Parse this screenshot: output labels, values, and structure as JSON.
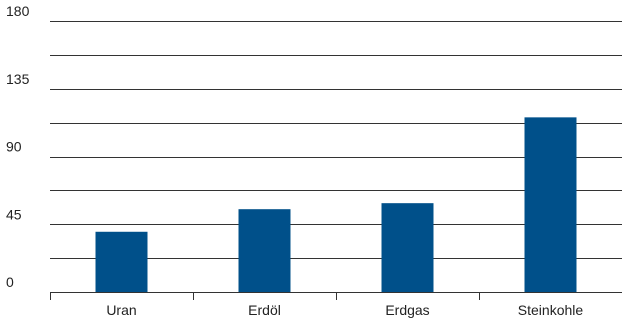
{
  "chart_data": {
    "type": "bar",
    "categories": [
      "Uran",
      "Erdöl",
      "Erdgas",
      "Steinkohle"
    ],
    "values": [
      40,
      55,
      59,
      116
    ],
    "title": "",
    "xlabel": "",
    "ylabel": "",
    "ylim": [
      0,
      180
    ],
    "yticks": [
      0,
      45,
      90,
      135,
      180
    ],
    "grid_minor_step": 22.5,
    "grid": true,
    "legend": "none",
    "bar_color": "#00508A"
  }
}
